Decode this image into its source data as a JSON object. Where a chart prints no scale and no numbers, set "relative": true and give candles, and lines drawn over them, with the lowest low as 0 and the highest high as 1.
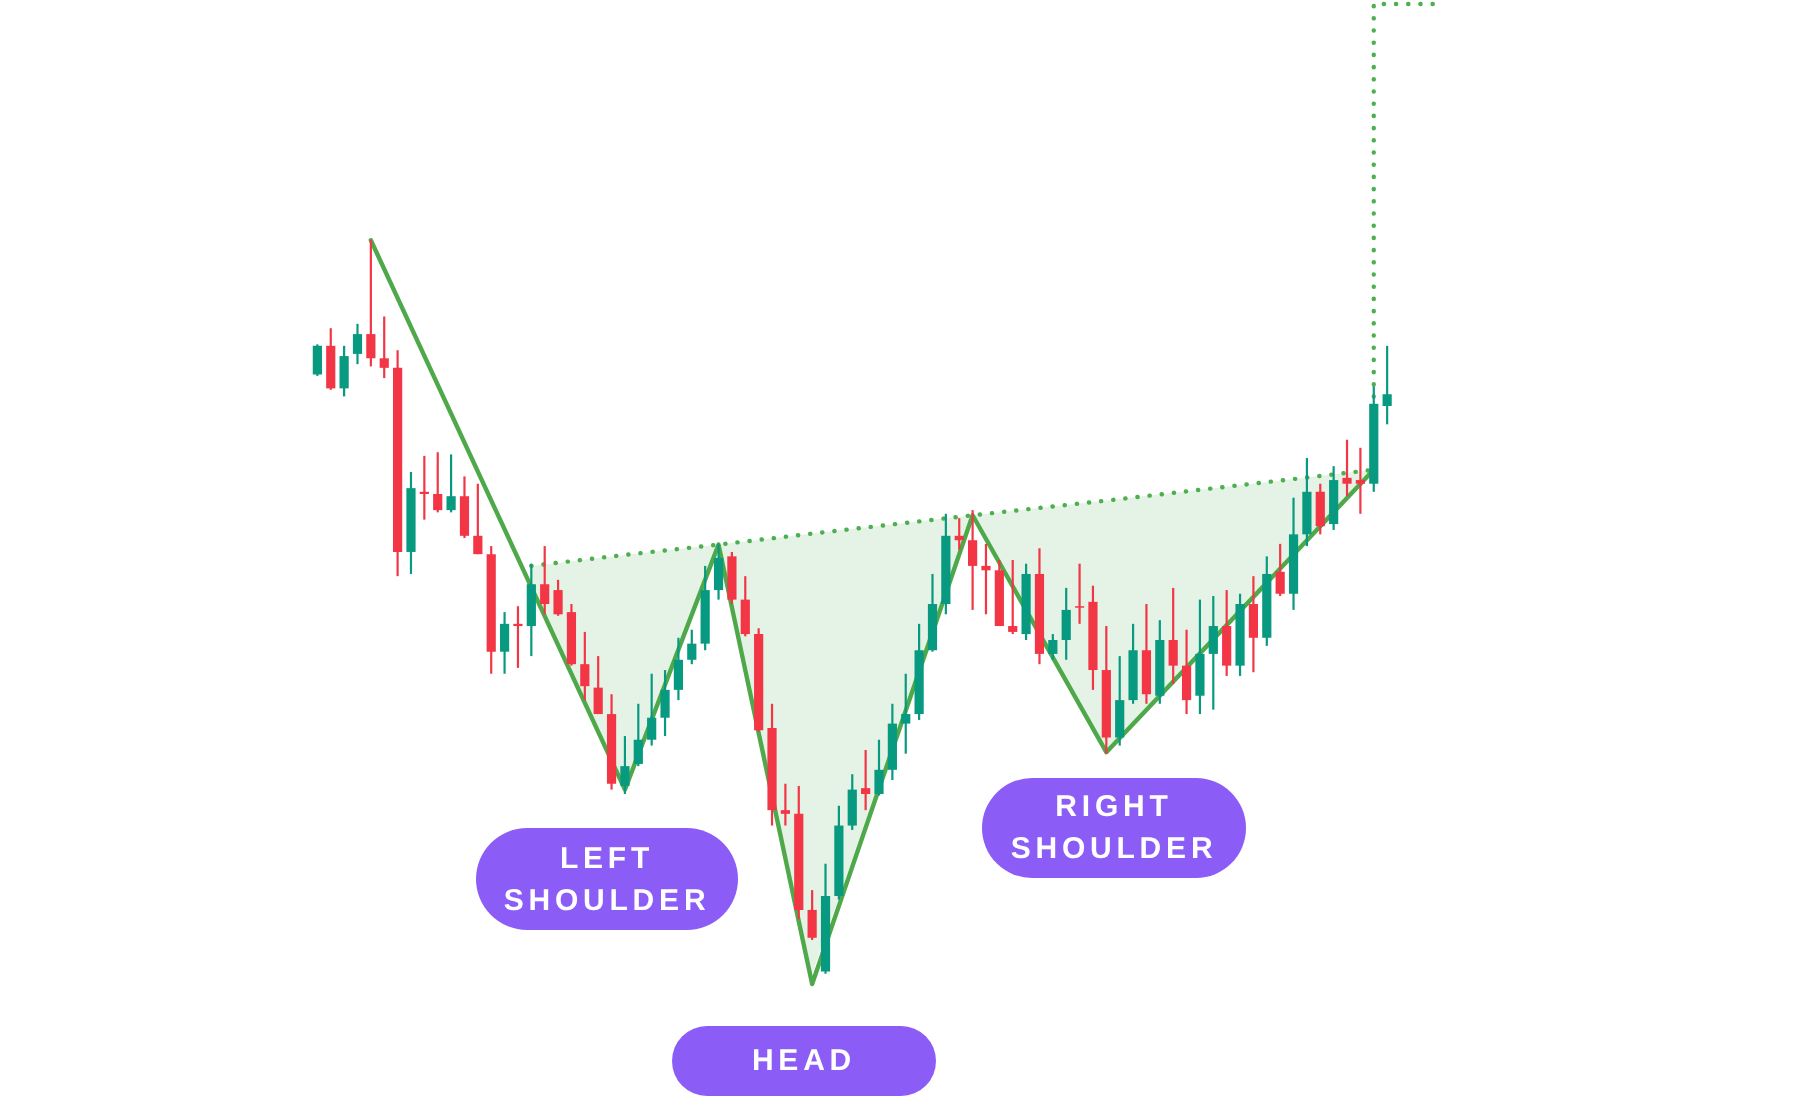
{
  "chart_data": {
    "type": "candlestick",
    "relative": true,
    "categories": [
      null,
      null,
      null,
      null,
      null,
      null,
      null,
      null,
      null,
      null,
      null,
      null,
      null,
      null,
      null,
      null,
      null,
      null,
      null,
      null,
      null,
      null,
      null,
      null,
      null,
      null,
      null,
      null,
      null,
      null,
      null,
      null,
      null,
      null,
      null,
      null,
      null,
      null,
      null,
      null,
      null,
      null,
      null,
      null,
      null,
      null,
      null,
      null,
      null,
      null,
      null,
      null,
      null,
      null,
      null,
      null,
      null,
      null,
      null,
      null,
      null,
      null,
      null,
      null,
      null,
      null,
      null,
      null,
      null,
      null,
      null,
      null,
      null,
      null,
      null,
      null,
      null,
      null,
      null,
      null,
      null,
      null,
      null,
      null,
      null
    ],
    "ohlc": [
      [
        0.817,
        0.858,
        0.815,
        0.856
      ],
      [
        0.856,
        0.88,
        0.796,
        0.798
      ],
      [
        0.798,
        0.856,
        0.787,
        0.842
      ],
      [
        0.845,
        0.886,
        0.831,
        0.872
      ],
      [
        0.872,
        1.0,
        0.828,
        0.839
      ],
      [
        0.839,
        0.896,
        0.812,
        0.826
      ],
      [
        0.826,
        0.85,
        0.542,
        0.575
      ],
      [
        0.575,
        0.684,
        0.545,
        0.662
      ],
      [
        0.657,
        0.706,
        0.619,
        0.654
      ],
      [
        0.654,
        0.711,
        0.629,
        0.632
      ],
      [
        0.632,
        0.708,
        0.629,
        0.651
      ],
      [
        0.651,
        0.678,
        0.594,
        0.597
      ],
      [
        0.597,
        0.668,
        0.572,
        0.572
      ],
      [
        0.572,
        0.583,
        0.409,
        0.439
      ],
      [
        0.439,
        0.493,
        0.409,
        0.477
      ],
      [
        0.477,
        0.501,
        0.417,
        0.474
      ],
      [
        0.474,
        0.559,
        0.433,
        0.531
      ],
      [
        0.531,
        0.583,
        0.49,
        0.504
      ],
      [
        0.523,
        0.537,
        0.488,
        0.49
      ],
      [
        0.493,
        0.504,
        0.42,
        0.422
      ],
      [
        0.422,
        0.466,
        0.373,
        0.392
      ],
      [
        0.39,
        0.433,
        0.354,
        0.354
      ],
      [
        0.354,
        0.381,
        0.251,
        0.259
      ],
      [
        0.256,
        0.324,
        0.245,
        0.283
      ],
      [
        0.286,
        0.368,
        0.283,
        0.319
      ],
      [
        0.319,
        0.409,
        0.311,
        0.349
      ],
      [
        0.349,
        0.414,
        0.324,
        0.387
      ],
      [
        0.387,
        0.458,
        0.373,
        0.428
      ],
      [
        0.428,
        0.469,
        0.422,
        0.45
      ],
      [
        0.45,
        0.556,
        0.441,
        0.523
      ],
      [
        0.523,
        0.586,
        0.51,
        0.567
      ],
      [
        0.569,
        0.575,
        0.504,
        0.51
      ],
      [
        0.51,
        0.542,
        0.46,
        0.463
      ],
      [
        0.463,
        0.471,
        0.33,
        0.332
      ],
      [
        0.335,
        0.368,
        0.202,
        0.223
      ],
      [
        0.223,
        0.259,
        0.202,
        0.218
      ],
      [
        0.218,
        0.256,
        0.074,
        0.087
      ],
      [
        0.087,
        0.114,
        0.046,
        0.049
      ],
      [
        0.003,
        0.15,
        0.0,
        0.106
      ],
      [
        0.106,
        0.229,
        0.101,
        0.202
      ],
      [
        0.202,
        0.272,
        0.196,
        0.251
      ],
      [
        0.253,
        0.305,
        0.223,
        0.245
      ],
      [
        0.245,
        0.319,
        0.243,
        0.278
      ],
      [
        0.278,
        0.368,
        0.264,
        0.341
      ],
      [
        0.341,
        0.409,
        0.3,
        0.354
      ],
      [
        0.354,
        0.477,
        0.346,
        0.441
      ],
      [
        0.441,
        0.545,
        0.439,
        0.504
      ],
      [
        0.504,
        0.627,
        0.49,
        0.597
      ],
      [
        0.597,
        0.621,
        0.578,
        0.591
      ],
      [
        0.591,
        0.632,
        0.496,
        0.556
      ],
      [
        0.556,
        0.586,
        0.49,
        0.55
      ],
      [
        0.55,
        0.564,
        0.474,
        0.474
      ],
      [
        0.474,
        0.564,
        0.463,
        0.466
      ],
      [
        0.463,
        0.559,
        0.455,
        0.545
      ],
      [
        0.545,
        0.58,
        0.422,
        0.436
      ],
      [
        0.436,
        0.463,
        0.428,
        0.455
      ],
      [
        0.455,
        0.526,
        0.428,
        0.496
      ],
      [
        0.501,
        0.559,
        0.477,
        0.499
      ],
      [
        0.507,
        0.529,
        0.387,
        0.414
      ],
      [
        0.414,
        0.474,
        0.3,
        0.322
      ],
      [
        0.322,
        0.433,
        0.311,
        0.373
      ],
      [
        0.373,
        0.477,
        0.368,
        0.441
      ],
      [
        0.441,
        0.504,
        0.368,
        0.381
      ],
      [
        0.379,
        0.482,
        0.368,
        0.455
      ],
      [
        0.455,
        0.526,
        0.395,
        0.42
      ],
      [
        0.42,
        0.469,
        0.354,
        0.373
      ],
      [
        0.379,
        0.51,
        0.354,
        0.436
      ],
      [
        0.436,
        0.515,
        0.36,
        0.474
      ],
      [
        0.474,
        0.523,
        0.406,
        0.42
      ],
      [
        0.42,
        0.518,
        0.406,
        0.504
      ],
      [
        0.504,
        0.542,
        0.411,
        0.458
      ],
      [
        0.458,
        0.569,
        0.447,
        0.545
      ],
      [
        0.548,
        0.586,
        0.515,
        0.518
      ],
      [
        0.518,
        0.649,
        0.496,
        0.599
      ],
      [
        0.599,
        0.703,
        0.583,
        0.657
      ],
      [
        0.657,
        0.668,
        0.599,
        0.61
      ],
      [
        0.613,
        0.692,
        0.605,
        0.673
      ],
      [
        0.676,
        0.728,
        0.651,
        0.668
      ],
      [
        0.673,
        0.717,
        0.627,
        0.668
      ],
      [
        0.668,
        0.801,
        0.657,
        0.777
      ],
      [
        0.774,
        0.856,
        0.749,
        0.79
      ],
      null,
      null,
      null,
      null
    ],
    "colors": [
      "#089981",
      "#f23645",
      "#089981",
      "#089981",
      "#f23645",
      "#f23645",
      "#f23645",
      "#089981",
      "#f23645",
      "#f23645",
      "#089981",
      "#f23645",
      "#f23645",
      "#f23645",
      "#089981",
      "#f23645",
      "#089981",
      "#f23645",
      "#f23645",
      "#f23645",
      "#f23645",
      "#f23645",
      "#f23645",
      "#089981",
      "#089981",
      "#089981",
      "#089981",
      "#089981",
      "#089981",
      "#089981",
      "#089981",
      "#f23645",
      "#f23645",
      "#f23645",
      "#f23645",
      "#f23645",
      "#f23645",
      "#f23645",
      "#089981",
      "#089981",
      "#089981",
      "#f23645",
      "#089981",
      "#089981",
      "#089981",
      "#089981",
      "#089981",
      "#089981",
      "#f23645",
      "#f23645",
      "#f23645",
      "#f23645",
      "#f23645",
      "#089981",
      "#f23645",
      "#089981",
      "#089981",
      "#f23645",
      "#f23645",
      "#f23645",
      "#089981",
      "#089981",
      "#f23645",
      "#089981",
      "#f23645",
      "#f23645",
      "#089981",
      "#089981",
      "#f23645",
      "#089981",
      "#f23645",
      "#089981",
      "#f23645",
      "#089981",
      "#089981",
      "#f23645",
      "#089981",
      "#f23645",
      "#f23645",
      "#089981",
      "#089981",
      null,
      null,
      null,
      null
    ],
    "series": [
      {
        "type": "line",
        "color": "#4fa84a",
        "values": [
          null,
          null,
          null,
          null,
          1.0,
          null,
          null,
          null,
          null,
          null,
          null,
          null,
          null,
          null,
          null,
          null,
          null,
          null,
          null,
          null,
          null,
          null,
          null,
          0.251,
          null,
          null,
          null,
          null,
          null,
          null,
          0.585,
          null,
          null,
          null,
          null,
          null,
          null,
          -0.014,
          null,
          null,
          null,
          null,
          null,
          null,
          null,
          null,
          null,
          null,
          null,
          0.625,
          null,
          null,
          null,
          null,
          null,
          null,
          null,
          null,
          null,
          0.302,
          null,
          null,
          null,
          null,
          null,
          null,
          null,
          null,
          null,
          null,
          null,
          null,
          null,
          null,
          null,
          null,
          null,
          null,
          null,
          0.687,
          null,
          null,
          null,
          null,
          null
        ]
      },
      {
        "type": "line",
        "color": "#4caf50",
        "line_style": "dotted",
        "values": [
          null,
          null,
          null,
          null,
          null,
          null,
          null,
          null,
          null,
          null,
          null,
          null,
          null,
          null,
          null,
          null,
          0.556,
          null,
          null,
          null,
          null,
          null,
          null,
          0.571,
          null,
          null,
          null,
          null,
          null,
          null,
          0.585,
          null,
          null,
          null,
          null,
          null,
          null,
          0.6,
          null,
          null,
          null,
          null,
          null,
          null,
          null,
          null,
          null,
          null,
          null,
          0.625,
          null,
          null,
          null,
          null,
          null,
          null,
          null,
          null,
          null,
          0.645,
          null,
          null,
          null,
          null,
          null,
          null,
          null,
          null,
          null,
          null,
          null,
          null,
          null,
          null,
          null,
          null,
          null,
          null,
          null,
          0.687,
          null,
          null,
          null,
          null,
          null
        ],
        "lower": [
          null,
          null,
          null,
          null,
          null,
          null,
          null,
          null,
          null,
          null,
          null,
          null,
          null,
          null,
          null,
          null,
          0.527,
          null,
          null,
          null,
          null,
          null,
          null,
          0.251,
          null,
          null,
          null,
          null,
          null,
          null,
          0.585,
          null,
          null,
          null,
          null,
          null,
          null,
          0.0,
          null,
          null,
          null,
          null,
          null,
          null,
          null,
          null,
          null,
          null,
          null,
          0.625,
          null,
          null,
          null,
          null,
          null,
          null,
          null,
          null,
          null,
          0.302,
          null,
          null,
          null,
          null,
          null,
          null,
          null,
          null,
          null,
          null,
          null,
          null,
          null,
          null,
          null,
          null,
          null,
          null,
          null,
          0.687,
          null,
          null,
          null,
          null,
          null
        ],
        "upper": [
          null,
          null,
          null,
          null,
          null,
          null,
          null,
          null,
          null,
          null,
          null,
          null,
          null,
          null,
          null,
          null,
          0.556,
          null,
          null,
          null,
          null,
          null,
          null,
          0.571,
          null,
          null,
          null,
          null,
          null,
          null,
          0.585,
          null,
          null,
          null,
          null,
          null,
          null,
          0.6,
          null,
          null,
          null,
          null,
          null,
          null,
          null,
          null,
          null,
          null,
          null,
          0.625,
          null,
          null,
          null,
          null,
          null,
          null,
          null,
          null,
          null,
          0.645,
          null,
          null,
          null,
          null,
          null,
          null,
          null,
          null,
          null,
          null,
          null,
          null,
          null,
          null,
          null,
          null,
          null,
          null,
          null,
          0.687,
          null,
          null,
          null,
          null,
          null
        ]
      },
      {
        "type": "step",
        "color": "#4caf50",
        "line_style": "dotted",
        "values": [
          null,
          null,
          null,
          null,
          null,
          null,
          null,
          null,
          null,
          null,
          null,
          null,
          null,
          null,
          null,
          null,
          null,
          null,
          null,
          null,
          null,
          null,
          null,
          null,
          null,
          null,
          null,
          null,
          null,
          null,
          null,
          null,
          null,
          null,
          null,
          null,
          null,
          null,
          null,
          null,
          null,
          null,
          null,
          null,
          null,
          null,
          null,
          null,
          null,
          null,
          null,
          null,
          null,
          null,
          null,
          null,
          null,
          null,
          null,
          null,
          null,
          null,
          null,
          null,
          null,
          null,
          null,
          null,
          null,
          null,
          null,
          null,
          null,
          null,
          null,
          null,
          null,
          null,
          null,
          0.687,
          null,
          null,
          null,
          null,
          1.322
        ]
      }
    ],
    "annotations": [
      "LEFT SHOULDER",
      "HEAD",
      "RIGHT SHOULDER"
    ]
  }
}
